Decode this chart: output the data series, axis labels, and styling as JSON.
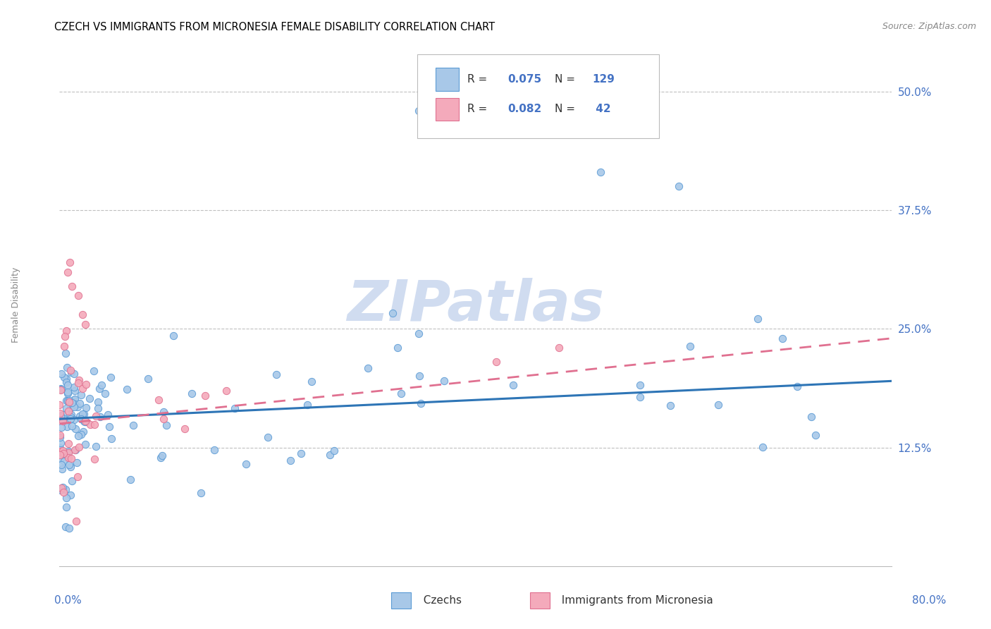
{
  "title": "CZECH VS IMMIGRANTS FROM MICRONESIA FEMALE DISABILITY CORRELATION CHART",
  "source": "Source: ZipAtlas.com",
  "ylabel": "Female Disability",
  "ytick_labels": [
    "12.5%",
    "25.0%",
    "37.5%",
    "50.0%"
  ],
  "ytick_values": [
    0.125,
    0.25,
    0.375,
    0.5
  ],
  "xlim": [
    0.0,
    0.8
  ],
  "ylim": [
    0.0,
    0.55
  ],
  "blue_color": "#A8C8E8",
  "blue_edge": "#5B9BD5",
  "pink_color": "#F4AABB",
  "pink_edge": "#E07090",
  "blue_line": "#2E75B6",
  "pink_line": "#E07090",
  "watermark_color": "#D0DCF0",
  "czech_trendline_x0": 0.0,
  "czech_trendline_x1": 0.8,
  "czech_trendline_y0": 0.155,
  "czech_trendline_y1": 0.195,
  "micro_trendline_x0": 0.0,
  "micro_trendline_x1": 0.8,
  "micro_trendline_y0": 0.15,
  "micro_trendline_y1": 0.24
}
